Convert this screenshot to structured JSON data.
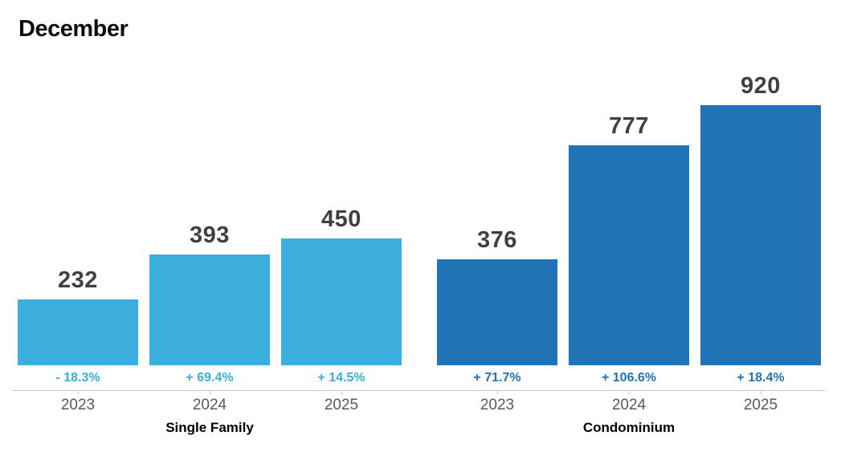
{
  "title": "December",
  "colors": {
    "single_family_blue": "#3BAEDD",
    "condominium_blue": "#2173B5",
    "value_label": "#3F4042",
    "year_label": "#58595B",
    "axis_line": "#CBCBCB",
    "title_text": "#0D0D0D"
  },
  "chart_data": {
    "type": "bar",
    "title": "December",
    "categories": [
      "2023",
      "2024",
      "2025"
    ],
    "ylim": [
      0,
      920
    ],
    "grid": false,
    "legend": "none",
    "xlabel": "",
    "ylabel": "",
    "groups": [
      {
        "label": "Single Family",
        "color": "#3BAEDD",
        "values": [
          232,
          393,
          450
        ],
        "pct_changes": [
          "- 18.3%",
          "+ 69.4%",
          "+ 14.5%"
        ]
      },
      {
        "label": "Condominium",
        "color": "#2173B5",
        "values": [
          376,
          777,
          920
        ],
        "pct_changes": [
          "+ 71.7%",
          "+ 106.6%",
          "+ 18.4%"
        ]
      }
    ]
  }
}
